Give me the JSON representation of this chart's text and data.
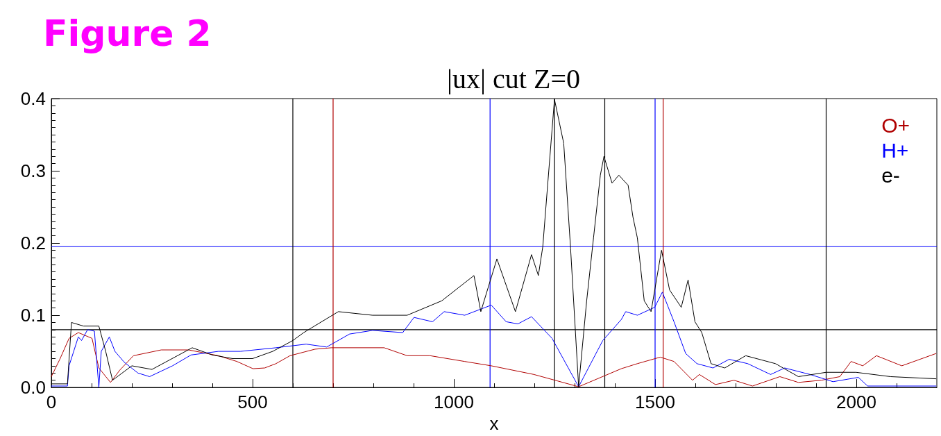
{
  "chart_data": {
    "type": "line",
    "title": "|ux| cut Z=0",
    "xlabel": "x",
    "annotations": [
      "Figure 2"
    ],
    "xlim": [
      0,
      2200
    ],
    "xticks": [
      0,
      500,
      1000,
      1500,
      2000
    ],
    "ylim": [
      0,
      0.4
    ],
    "yticks": [
      {
        "value": 0,
        "label": "0.0"
      },
      0.1,
      0.2,
      0.3,
      0.4
    ],
    "grid": false,
    "legend": "top right",
    "marker": "none",
    "line_style": "solid",
    "series": [
      {
        "name": "O+",
        "color": "#b00000",
        "x": [
          0,
          21,
          44,
          67,
          101,
          118,
          147,
          170,
          204,
          273,
          341,
          415,
          461,
          501,
          530,
          558,
          593,
          655,
          696,
          827,
          884,
          941,
          1027,
          1093,
          1199,
          1310,
          1416,
          1456,
          1513,
          1547,
          1593,
          1610,
          1650,
          1696,
          1742,
          1810,
          1856,
          1913,
          1959,
          1987,
          2016,
          2050,
          2113,
          2198
        ],
        "values": [
          0.015,
          0.039,
          0.068,
          0.076,
          0.068,
          0.027,
          0.007,
          0.024,
          0.044,
          0.052,
          0.052,
          0.044,
          0.036,
          0.026,
          0.027,
          0.033,
          0.044,
          0.053,
          0.055,
          0.055,
          0.044,
          0.044,
          0.036,
          0.03,
          0.018,
          0.001,
          0.026,
          0.033,
          0.042,
          0.036,
          0.01,
          0.018,
          0.004,
          0.01,
          0.002,
          0.015,
          0.007,
          0.01,
          0.015,
          0.036,
          0.03,
          0.044,
          0.03,
          0.047
        ]
      },
      {
        "name": "H+",
        "color": "#0000ff",
        "x": [
          0,
          40,
          44,
          67,
          75,
          90,
          107,
          118,
          124,
          144,
          158,
          181,
          215,
          244,
          301,
          347,
          415,
          470,
          558,
          633,
          684,
          741,
          798,
          873,
          901,
          947,
          976,
          1027,
          1093,
          1130,
          1159,
          1193,
          1244,
          1310,
          1370,
          1416,
          1427,
          1456,
          1499,
          1518,
          1547,
          1576,
          1604,
          1644,
          1684,
          1730,
          1787,
          1822,
          1885,
          1942,
          2005,
          2028,
          2198
        ],
        "values": [
          0.002,
          0.002,
          0.03,
          0.07,
          0.065,
          0.08,
          0.078,
          0,
          0.05,
          0.07,
          0.05,
          0.035,
          0.02,
          0.015,
          0.03,
          0.045,
          0.05,
          0.05,
          0.055,
          0.06,
          0.056,
          0.074,
          0.079,
          0.076,
          0.097,
          0.091,
          0.105,
          0.1,
          0.114,
          0.091,
          0.088,
          0.098,
          0.068,
          0.001,
          0.065,
          0.094,
          0.105,
          0.1,
          0.111,
          0.132,
          0.091,
          0.047,
          0.033,
          0.027,
          0.039,
          0.033,
          0.018,
          0.027,
          0.018,
          0.008,
          0.014,
          0.002,
          0.002
        ]
      },
      {
        "name": "e-",
        "color": "#000000",
        "x": [
          0,
          40,
          50,
          80,
          118,
          135,
          152,
          200,
          250,
          300,
          350,
          400,
          450,
          500,
          550,
          600,
          627,
          713,
          798,
          884,
          970,
          1050,
          1067,
          1107,
          1153,
          1193,
          1210,
          1221,
          1233,
          1250,
          1273,
          1290,
          1310,
          1330,
          1347,
          1364,
          1373,
          1393,
          1410,
          1433,
          1445,
          1456,
          1473,
          1490,
          1516,
          1536,
          1565,
          1582,
          1599,
          1616,
          1639,
          1673,
          1725,
          1799,
          1856,
          1925,
          1999,
          2085,
          2198
        ],
        "values": [
          0.005,
          0.005,
          0.09,
          0.085,
          0.085,
          0.05,
          0.01,
          0.03,
          0.025,
          0.04,
          0.055,
          0.045,
          0.04,
          0.04,
          0.05,
          0.065,
          0.076,
          0.105,
          0.1,
          0.1,
          0.12,
          0.155,
          0.105,
          0.178,
          0.105,
          0.184,
          0.155,
          0.195,
          0.28,
          0.399,
          0.338,
          0.193,
          0.001,
          0.12,
          0.207,
          0.294,
          0.32,
          0.283,
          0.294,
          0.28,
          0.236,
          0.207,
          0.12,
          0.105,
          0.19,
          0.135,
          0.111,
          0.149,
          0.091,
          0.076,
          0.033,
          0.027,
          0.044,
          0.033,
          0.015,
          0.021,
          0.021,
          0.015,
          0.012
        ]
      }
    ],
    "ref_lines": [
      {
        "axis": "x",
        "value": 600,
        "color": "#000000"
      },
      {
        "axis": "x",
        "value": 700,
        "color": "#b00000"
      },
      {
        "axis": "x",
        "value": 1090,
        "color": "#0000ff"
      },
      {
        "axis": "x",
        "value": 1250,
        "color": "#000000"
      },
      {
        "axis": "x",
        "value": 1375,
        "color": "#000000"
      },
      {
        "axis": "x",
        "value": 1500,
        "color": "#0000ff"
      },
      {
        "axis": "x",
        "value": 1520,
        "color": "#b00000"
      },
      {
        "axis": "x",
        "value": 1925,
        "color": "#000000"
      },
      {
        "axis": "y",
        "value": 0.195,
        "color": "#0000ff"
      },
      {
        "axis": "y",
        "value": 0.08,
        "color": "#000000"
      }
    ]
  }
}
